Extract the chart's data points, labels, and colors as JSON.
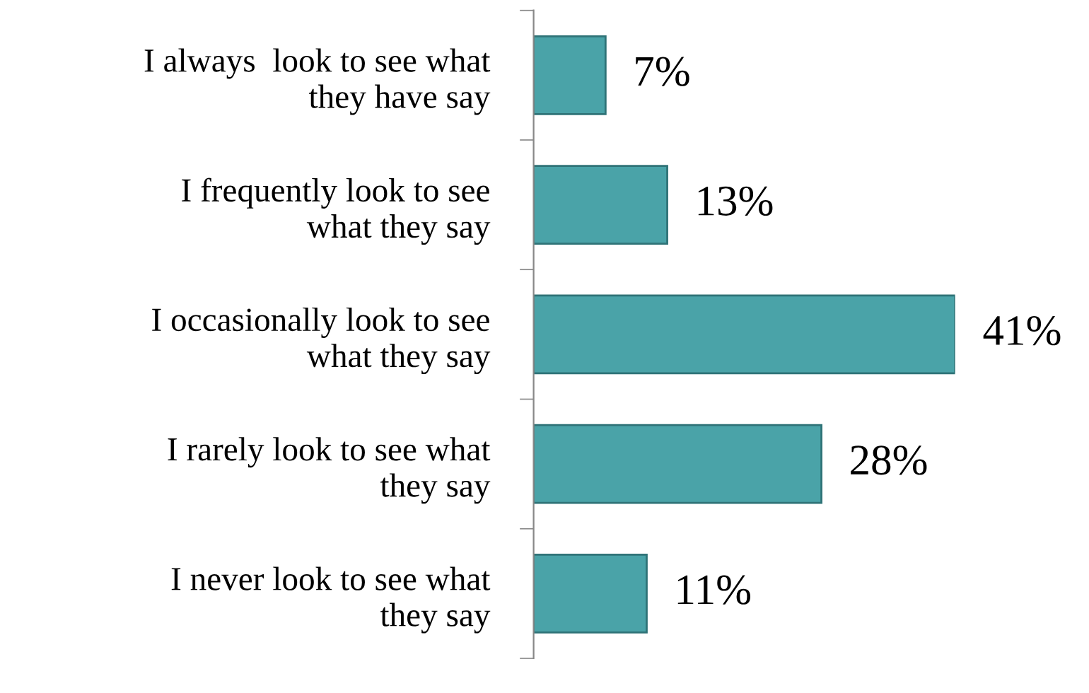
{
  "chart_data": {
    "type": "bar",
    "orientation": "horizontal",
    "categories": [
      "I always  look to see what they have say",
      "I frequently look to see what they say",
      "I occasionally look to see what they say",
      "I rarely look to see what they say",
      "I never look to see what they say"
    ],
    "values": [
      7,
      13,
      41,
      28,
      11
    ],
    "value_labels": [
      "7%",
      "13%",
      "41%",
      "28%",
      "11%"
    ],
    "color": "#4aa3a8",
    "grid": false,
    "legend": false
  }
}
